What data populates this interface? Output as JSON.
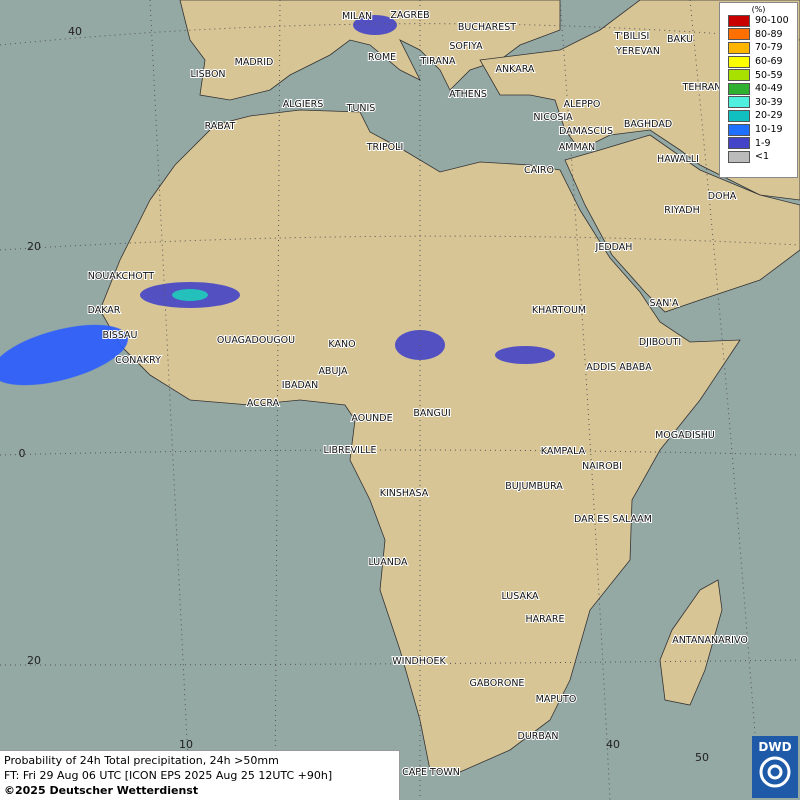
{
  "map": {
    "cities": [
      "MILAN",
      "ZAGREB",
      "BUCHAREST",
      "SOFIYA",
      "T'BILISI",
      "BAKU",
      "YEREVAN",
      "MADRID",
      "ROME",
      "TIRANA",
      "ANKARA",
      "TEHRAN",
      "LISBON",
      "ALGIERS",
      "TUNIS",
      "ATHENS",
      "ALEPPO",
      "RABAT",
      "NICOSIA",
      "BAGHDAD",
      "DAMASCUS",
      "TRIPOLI",
      "AMMAN",
      "HAWALLI",
      "CAIRO",
      "DOHA",
      "RIYADH",
      "JEDDAH",
      "NOUAKCHOTT",
      "SAN'A",
      "DAKAR",
      "KHARTOUM",
      "BISSAU",
      "OUAGADOUGOU",
      "KANO",
      "DJIBOUTI",
      "CONAKRY",
      "ABUJA",
      "ADDIS ABABA",
      "IBADAN",
      "ACCRA",
      "AOUNDE",
      "BANGUI",
      "MOGADISHU",
      "LIBREVILLE",
      "KAMPALA",
      "NAIROBI",
      "BUJUMBURA",
      "KINSHASA",
      "DAR ES SALAAM",
      "LUANDA",
      "LUSAKA",
      "HARARE",
      "ANTANANARIVO",
      "WINDHOEK",
      "GABORONE",
      "MAPUTO",
      "DURBAN",
      "CAPE TOWN"
    ],
    "grid_labels": [
      40,
      20,
      0,
      20,
      10,
      40,
      50
    ]
  },
  "legend": {
    "title": "(%)",
    "items": [
      {
        "label": "90-100",
        "color": "#c80000"
      },
      {
        "label": "80-89",
        "color": "#ff7000"
      },
      {
        "label": "70-79",
        "color": "#ffb400"
      },
      {
        "label": "60-69",
        "color": "#ffff00"
      },
      {
        "label": "50-59",
        "color": "#a8e000"
      },
      {
        "label": "40-49",
        "color": "#30b030"
      },
      {
        "label": "30-39",
        "color": "#50f0e0"
      },
      {
        "label": "20-29",
        "color": "#10c0c0"
      },
      {
        "label": "10-19",
        "color": "#2070ff"
      },
      {
        "label": "1-9",
        "color": "#4444c8"
      },
      {
        "label": "<1",
        "color": "#bbbbbb"
      }
    ]
  },
  "caption": {
    "lines": [
      "Probability of 24h Total precipitation, 24h >50mm",
      "FT: Fri 29 Aug 06 UTC [ICON EPS 2025 Aug 25 12UTC +90h]"
    ],
    "copyright": "©2025 Deutscher Wetterdienst"
  },
  "logo": "DWD"
}
